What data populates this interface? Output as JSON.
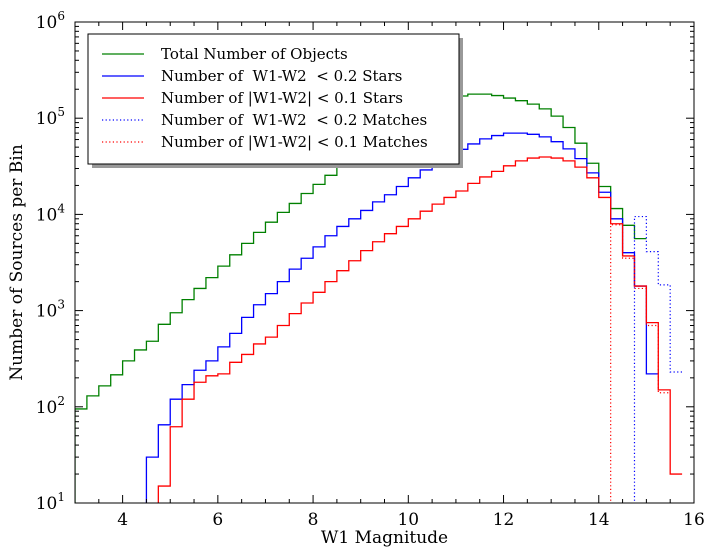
{
  "chart_data": {
    "type": "line",
    "xlabel": "W1 Magnitude",
    "ylabel": "Number of Sources per Bin",
    "xlim": [
      3,
      16
    ],
    "ylim": [
      10,
      1000000
    ],
    "yscale": "log",
    "x_ticks": [
      4,
      6,
      8,
      10,
      12,
      14,
      16
    ],
    "y_ticks": [
      10,
      100,
      1000,
      10000,
      100000,
      1000000
    ],
    "y_tick_labels": [
      {
        "base": "10",
        "exp": "1"
      },
      {
        "base": "10",
        "exp": "2"
      },
      {
        "base": "10",
        "exp": "3"
      },
      {
        "base": "10",
        "exp": "4"
      },
      {
        "base": "10",
        "exp": "5"
      },
      {
        "base": "10",
        "exp": "6"
      }
    ],
    "bin_width": 0.25,
    "legend_position": "upper-left",
    "series": [
      {
        "name": "Total Number of Objects",
        "color": "#008000",
        "style": "solid",
        "bin_start": 3.0,
        "values": [
          95,
          130,
          165,
          215,
          300,
          390,
          480,
          720,
          950,
          1300,
          1700,
          2200,
          2900,
          3800,
          5000,
          6500,
          8300,
          10500,
          13000,
          16500,
          20500,
          25500,
          32000,
          40000,
          50000,
          62000,
          76000,
          92000,
          110000,
          128000,
          145000,
          160000,
          170000,
          178000,
          178000,
          172000,
          162000,
          152000,
          140000,
          125000,
          105000,
          80000,
          55000,
          34000,
          19500,
          11500,
          7700,
          5600
        ]
      },
      {
        "name": "Number of  W1-W2  < 0.2 Stars",
        "color": "#0000ff",
        "style": "solid",
        "bin_start": 4.5,
        "values": [
          30,
          65,
          120,
          170,
          240,
          300,
          420,
          580,
          850,
          1150,
          1500,
          2000,
          2700,
          3500,
          4600,
          6000,
          7500,
          9000,
          11000,
          13500,
          16000,
          19500,
          24000,
          29000,
          35000,
          41000,
          47500,
          54000,
          61000,
          66000,
          70000,
          70000,
          68000,
          64000,
          57000,
          48000,
          38000,
          27000,
          17000,
          9000,
          4000,
          1800,
          220
        ]
      },
      {
        "name": "Number of |W1-W2| < 0.1 Stars",
        "color": "#ff0000",
        "style": "solid",
        "bin_start": 4.75,
        "values": [
          15,
          62,
          120,
          180,
          210,
          220,
          290,
          350,
          450,
          530,
          700,
          930,
          1200,
          1550,
          2000,
          2600,
          3300,
          4200,
          5200,
          6300,
          7500,
          9000,
          10800,
          12800,
          15000,
          17500,
          21000,
          24500,
          28000,
          32000,
          36000,
          38500,
          39500,
          38500,
          36000,
          31000,
          24000,
          15000,
          8000,
          3700,
          1800,
          750,
          150,
          20
        ]
      },
      {
        "name": "Number of  W1-W2  < 0.2 Matches",
        "color": "#0000ff",
        "style": "dotted",
        "bin_start": 14.75,
        "values": [
          9500,
          4100,
          1850,
          230
        ]
      },
      {
        "name": "Number of |W1-W2| < 0.1 Matches",
        "color": "#ff0000",
        "style": "dotted",
        "bin_start": 14.25,
        "values": [
          7800,
          3500,
          1700,
          700,
          140
        ]
      }
    ]
  }
}
